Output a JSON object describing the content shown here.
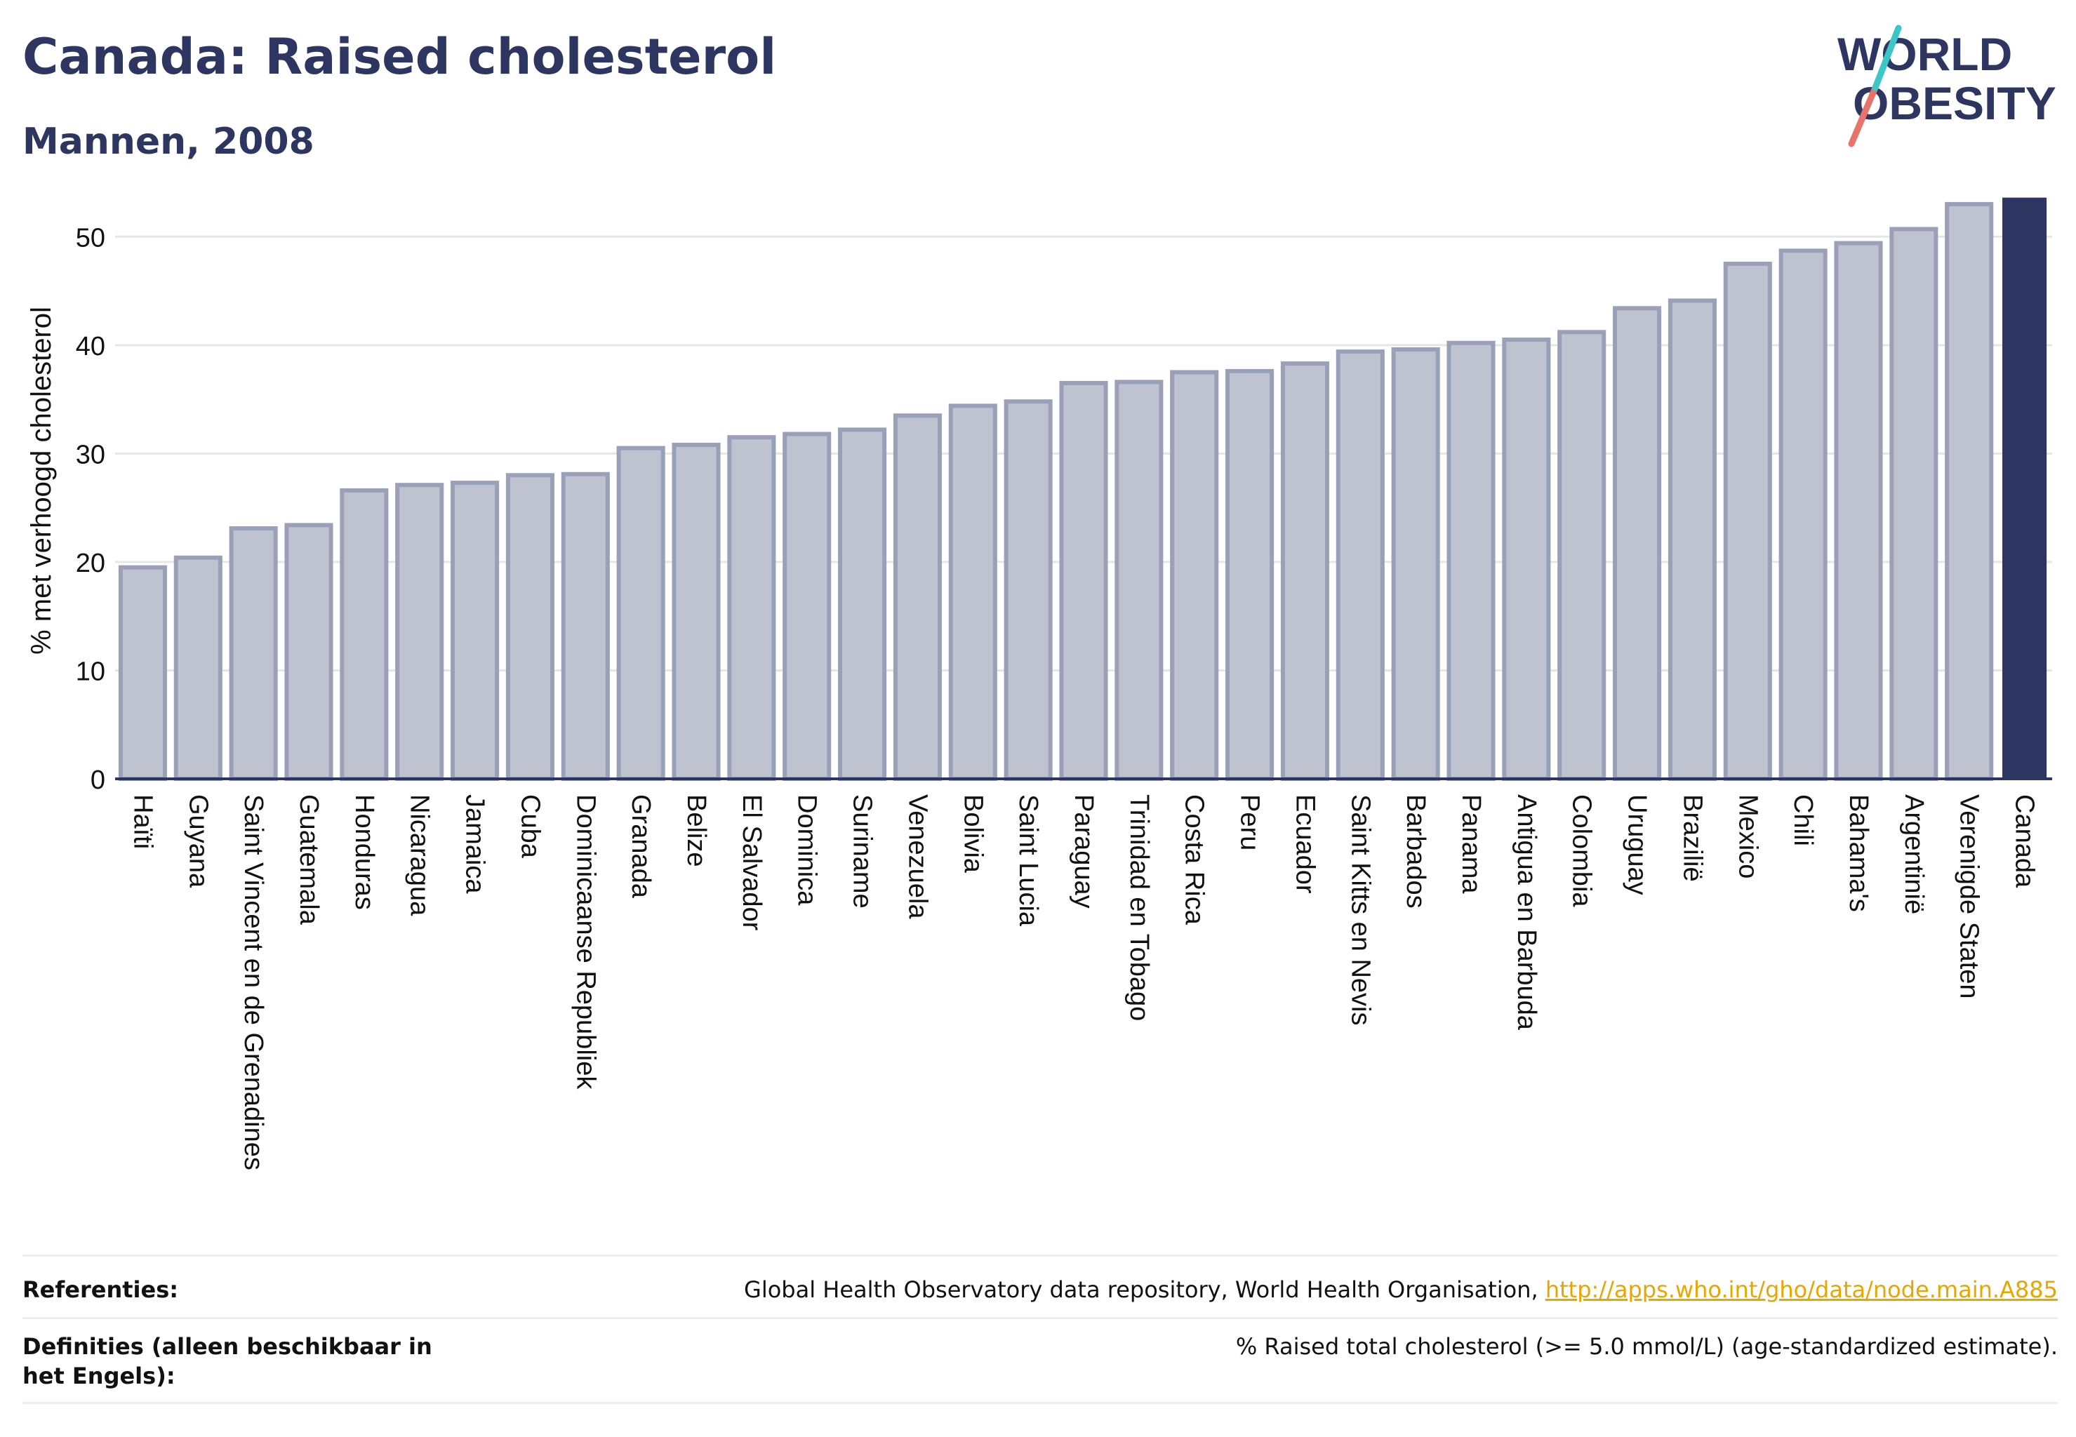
{
  "header": {
    "title": "Canada: Raised cholesterol",
    "subtitle": "Mannen, 2008"
  },
  "logo": {
    "line1": "WORLD",
    "line2": "OBESITY"
  },
  "footer": {
    "references_label": "Referenties:",
    "references_text": "Global Health Observatory data repository, World Health Organisation, ",
    "references_link": "http://apps.who.int/gho/data/node.main.A885",
    "definitions_label": "Definities (alleen beschikbaar in het Engels):",
    "definitions_text": "% Raised total cholesterol (>= 5.0 mmol/L) (age-standardized estimate)."
  },
  "colors": {
    "bar_fill": "#bfc2cf",
    "bar_stroke": "#9aa0b8",
    "highlight": "#2d3561",
    "grid": "#e6e6e6",
    "axis": "#2d3561"
  },
  "chart_data": {
    "type": "bar",
    "ylabel": "% met verhoogd cholesterol",
    "xlabel": "",
    "ylim": [
      0,
      55
    ],
    "yticks": [
      0,
      10,
      20,
      30,
      40,
      50
    ],
    "grid": true,
    "highlight_category": "Canada",
    "categories": [
      "Haïti",
      "Guyana",
      "Saint Vincent en de Grenadines",
      "Guatemala",
      "Honduras",
      "Nicaragua",
      "Jamaica",
      "Cuba",
      "Dominicaanse Republiek",
      "Granada",
      "Belize",
      "El Salvador",
      "Dominica",
      "Suriname",
      "Venezuela",
      "Bolivia",
      "Saint Lucia",
      "Paraguay",
      "Trinidad en Tobago",
      "Costa Rica",
      "Peru",
      "Ecuador",
      "Saint Kitts en Nevis",
      "Barbados",
      "Panama",
      "Antigua en Barbuda",
      "Colombia",
      "Uruguay",
      "Brazilië",
      "Mexico",
      "Chili",
      "Bahama's",
      "Argentinië",
      "Verenigde Staten",
      "Canada"
    ],
    "values": [
      19.5,
      20.4,
      23.1,
      23.4,
      26.6,
      27.1,
      27.3,
      28.0,
      28.1,
      30.5,
      30.8,
      31.5,
      31.8,
      32.2,
      33.5,
      34.4,
      34.8,
      36.5,
      36.6,
      37.5,
      37.6,
      38.3,
      39.4,
      39.6,
      40.2,
      40.5,
      41.2,
      43.4,
      44.1,
      47.5,
      48.7,
      49.4,
      50.7,
      53.0,
      53.6
    ]
  }
}
